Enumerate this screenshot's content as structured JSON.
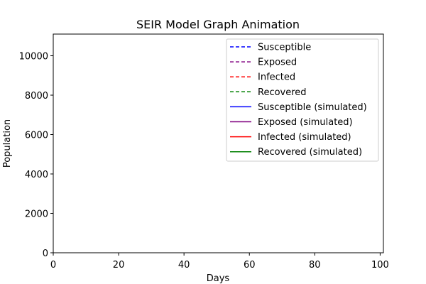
{
  "chart_data": {
    "type": "line",
    "title": "SEIR Model Graph Animation",
    "xlabel": "Days",
    "ylabel": "Population",
    "xlim": [
      0,
      101
    ],
    "ylim": [
      0,
      11100
    ],
    "xticks": [
      0,
      20,
      40,
      60,
      80,
      100
    ],
    "xtick_labels": [
      "0",
      "20",
      "40",
      "60",
      "80",
      "100"
    ],
    "yticks": [
      0,
      2000,
      4000,
      6000,
      8000,
      10000
    ],
    "ytick_labels": [
      "0",
      "2000",
      "4000",
      "6000",
      "8000",
      "10000"
    ],
    "grid": false,
    "legend_position": "top-right",
    "series": [
      {
        "name": "Susceptible",
        "color": "#0000ff",
        "linestyle": "dashed",
        "x": [],
        "y": []
      },
      {
        "name": "Exposed",
        "color": "#800080",
        "linestyle": "dashed",
        "x": [],
        "y": []
      },
      {
        "name": "Infected",
        "color": "#ff0000",
        "linestyle": "dashed",
        "x": [],
        "y": []
      },
      {
        "name": "Recovered",
        "color": "#008000",
        "linestyle": "dashed",
        "x": [],
        "y": []
      },
      {
        "name": "Susceptible (simulated)",
        "color": "#0000ff",
        "linestyle": "solid",
        "x": [],
        "y": []
      },
      {
        "name": "Exposed (simulated)",
        "color": "#800080",
        "linestyle": "solid",
        "x": [],
        "y": []
      },
      {
        "name": "Infected (simulated)",
        "color": "#ff0000",
        "linestyle": "solid",
        "x": [],
        "y": []
      },
      {
        "name": "Recovered (simulated)",
        "color": "#008000",
        "linestyle": "solid",
        "x": [],
        "y": []
      }
    ]
  }
}
